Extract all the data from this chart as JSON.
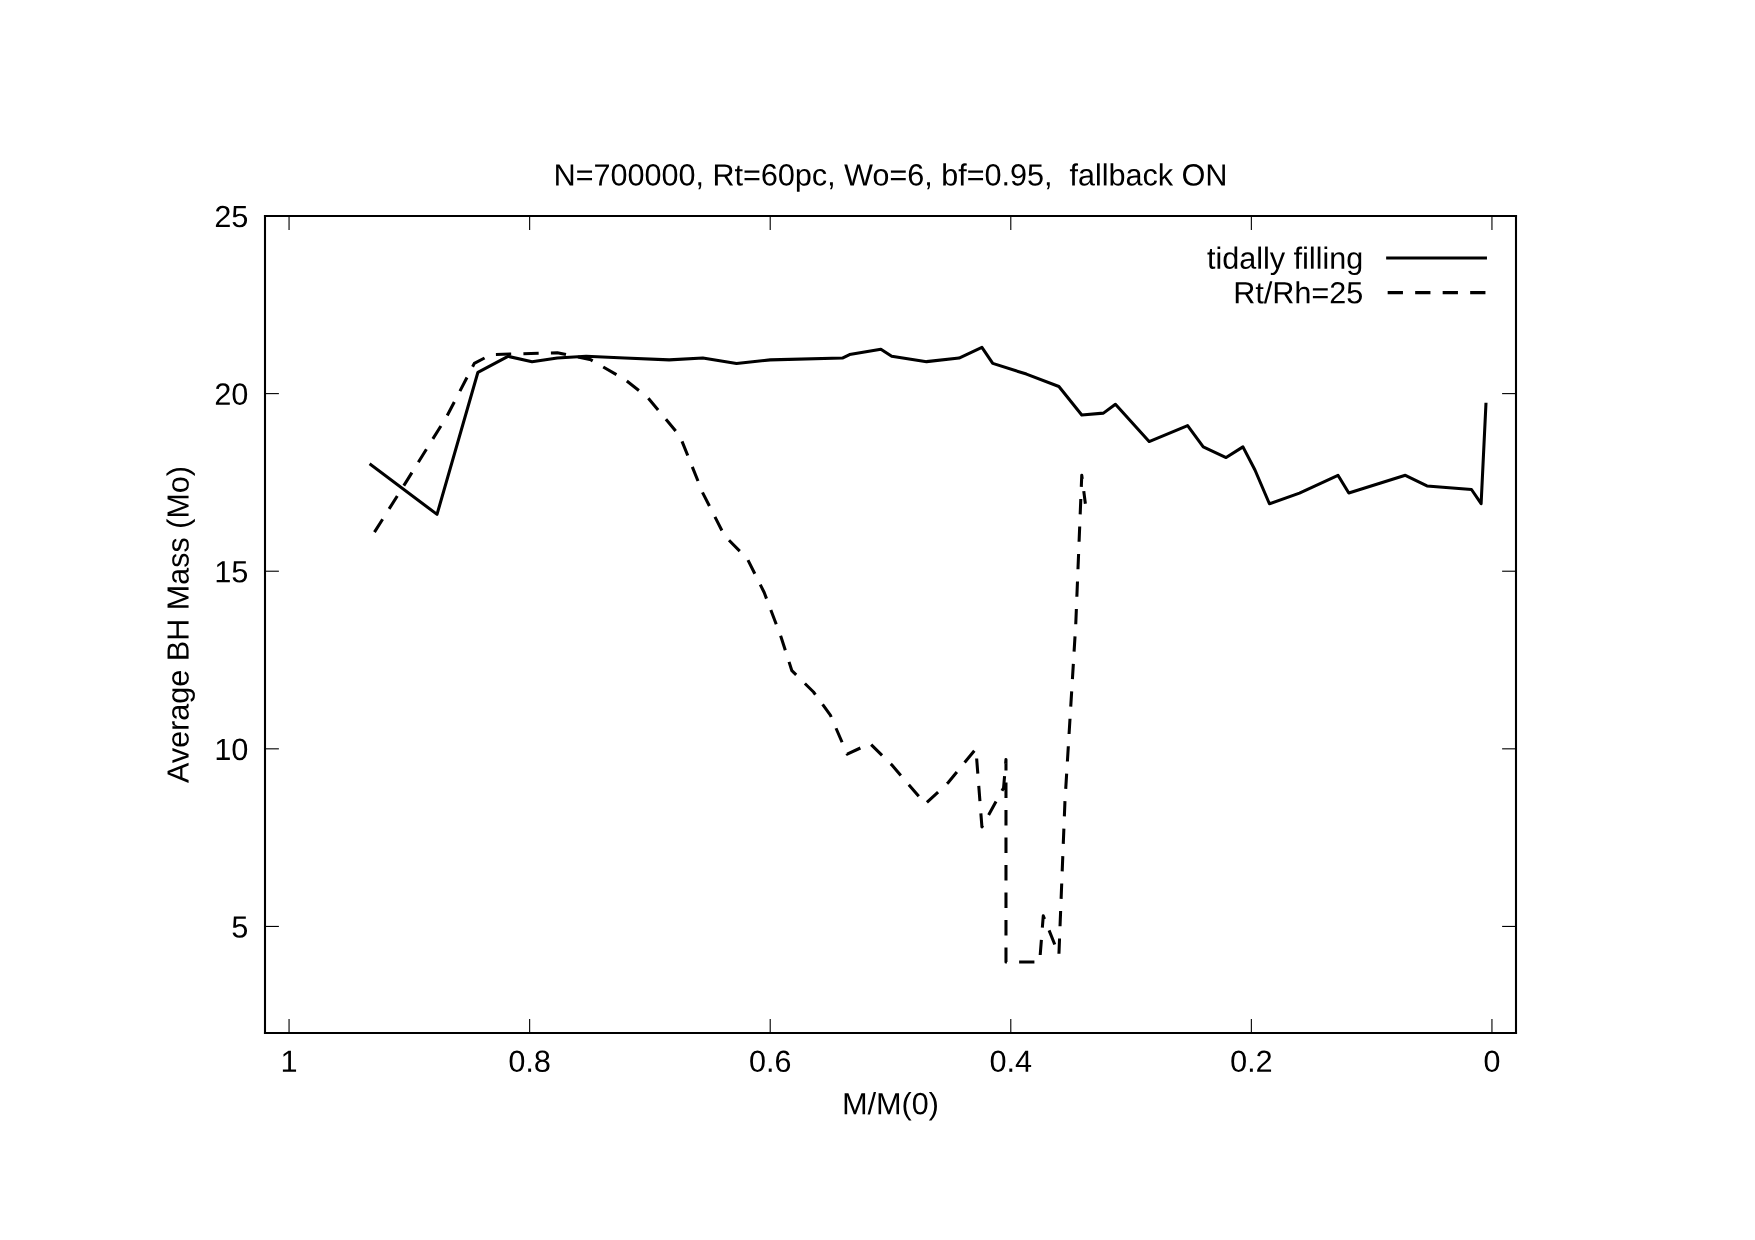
{
  "chart_data": {
    "type": "line",
    "title": "N=700000, Rt=60pc, Wo=6, bf=0.95,  fallback ON",
    "xlabel": "M/M(0)",
    "ylabel": "Average BH Mass (Mo)",
    "xlim": [
      1.02,
      -0.02
    ],
    "xticks": [
      1,
      0.8,
      0.6,
      0.4,
      0.2,
      0
    ],
    "ylim": [
      2,
      25
    ],
    "yticks": [
      5,
      10,
      15,
      20,
      25
    ],
    "grid": false,
    "legend": "top right",
    "series": [
      {
        "name": "tidally filling",
        "color": "#000000",
        "line_style": "solid",
        "x": [
          0.932,
          0.877,
          0.843,
          0.818,
          0.798,
          0.777,
          0.753,
          0.721,
          0.684,
          0.656,
          0.628,
          0.6,
          0.54,
          0.534,
          0.508,
          0.499,
          0.47,
          0.443,
          0.424,
          0.415,
          0.387,
          0.36,
          0.341,
          0.323,
          0.313,
          0.285,
          0.253,
          0.24,
          0.221,
          0.207,
          0.197,
          0.185,
          0.16,
          0.128,
          0.119,
          0.072,
          0.054,
          0.017,
          0.009,
          0.005
        ],
        "values": [
          18.0,
          16.6,
          20.6,
          21.05,
          20.9,
          21.0,
          21.05,
          21.0,
          20.95,
          21.0,
          20.85,
          20.95,
          21.0,
          21.1,
          21.25,
          21.05,
          20.9,
          21.0,
          21.3,
          20.85,
          20.55,
          20.2,
          19.4,
          19.45,
          19.7,
          18.65,
          19.1,
          18.5,
          18.2,
          18.5,
          17.85,
          16.9,
          17.2,
          17.7,
          17.2,
          17.7,
          17.4,
          17.3,
          16.9,
          19.7
        ]
      },
      {
        "name": "Rt/Rh=25",
        "color": "#000000",
        "line_style": "dashed",
        "x": [
          0.929,
          0.902,
          0.869,
          0.846,
          0.832,
          0.777,
          0.749,
          0.721,
          0.702,
          0.675,
          0.656,
          0.638,
          0.619,
          0.605,
          0.591,
          0.582,
          0.564,
          0.55,
          0.536,
          0.517,
          0.499,
          0.471,
          0.452,
          0.429,
          0.424,
          0.406,
          0.404,
          0.404,
          0.376,
          0.373,
          0.36,
          0.355,
          0.346,
          0.341,
          0.338
        ],
        "values": [
          16.1,
          17.55,
          19.35,
          20.85,
          21.1,
          21.15,
          20.95,
          20.4,
          19.9,
          18.8,
          17.2,
          16.0,
          15.35,
          14.4,
          13.15,
          12.2,
          11.6,
          10.95,
          9.85,
          10.15,
          9.55,
          8.45,
          9.05,
          10.0,
          7.8,
          8.9,
          9.7,
          4.0,
          4.0,
          5.3,
          4.2,
          8.5,
          13.5,
          17.7,
          16.9
        ]
      }
    ]
  }
}
